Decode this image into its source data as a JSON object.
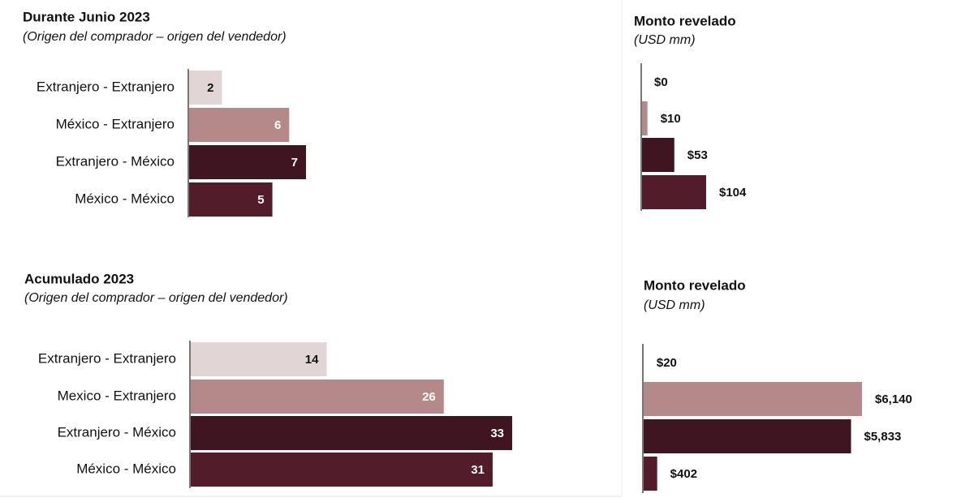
{
  "chart_data": [
    {
      "type": "bar",
      "title": "Durante Junio 2023",
      "subtitle": "(Origen del comprador – origen del vendedor)",
      "categories": [
        "Extranjero - Extranjero",
        "México - Extranjero",
        "Extranjero - México",
        "México - México"
      ],
      "values": [
        2,
        6,
        7,
        5
      ],
      "colors": [
        "#e2d5d6",
        "#b58889",
        "#3e1520",
        "#521c2a"
      ]
    },
    {
      "type": "bar",
      "title": "Monto revelado",
      "subtitle": "(USD mm)",
      "values": [
        0,
        10,
        53,
        104
      ],
      "value_labels": [
        "$0",
        "$10",
        "$53",
        "$104"
      ],
      "colors": [
        "#e2d5d6",
        "#b58889",
        "#3e1520",
        "#521c2a"
      ]
    },
    {
      "type": "bar",
      "title": "Acumulado 2023",
      "subtitle": "(Origen del comprador – origen del vendedor)",
      "categories": [
        "Extranjero - Extranjero",
        "Mexico - Extranjero",
        "Extranjero - México",
        "México - México"
      ],
      "values": [
        14,
        26,
        33,
        31
      ],
      "colors": [
        "#e2d5d6",
        "#b58889",
        "#3e1520",
        "#521c2a"
      ]
    },
    {
      "type": "bar",
      "title": "Monto revelado",
      "subtitle": "(USD mm)",
      "values": [
        20,
        6140,
        5833,
        402
      ],
      "value_labels": [
        "$20",
        "$6,140",
        "$5,833",
        "$402"
      ],
      "colors": [
        "#e2d5d6",
        "#b58889",
        "#3e1520",
        "#521c2a"
      ]
    }
  ]
}
